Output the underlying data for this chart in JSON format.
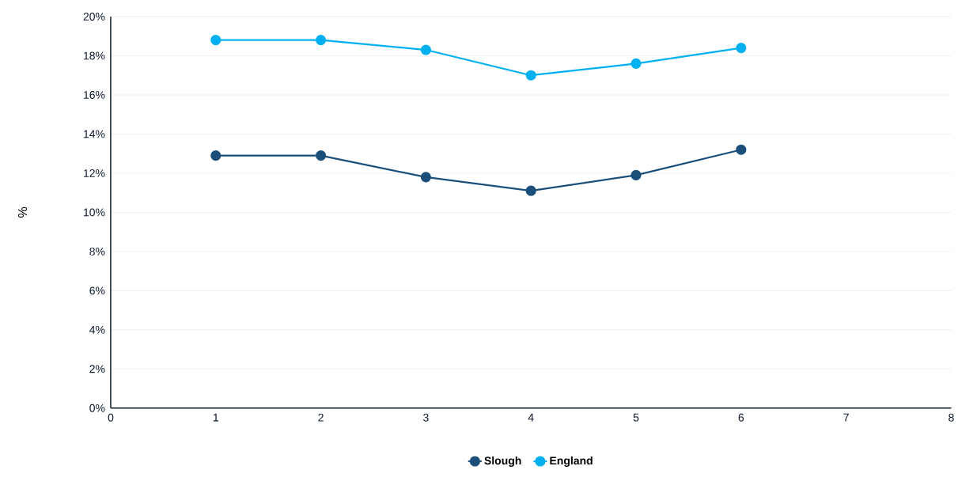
{
  "chart_data": {
    "type": "line",
    "ylabel": "%",
    "x": [
      1,
      2,
      3,
      4,
      5,
      6
    ],
    "series": [
      {
        "name": "Slough",
        "color": "#1b4f7a",
        "values": [
          12.9,
          12.9,
          11.8,
          11.1,
          11.9,
          13.2
        ]
      },
      {
        "name": "England",
        "color": "#00b0f0",
        "values": [
          18.8,
          18.8,
          18.3,
          17.0,
          17.6,
          18.4
        ]
      }
    ],
    "xlim": [
      0,
      8
    ],
    "xticks": [
      0,
      1,
      2,
      3,
      4,
      5,
      6,
      7,
      8
    ],
    "ylim": [
      0,
      20
    ],
    "yticks": [
      {
        "value": 0,
        "label": "0%"
      },
      {
        "value": 2,
        "label": "2%"
      },
      {
        "value": 4,
        "label": "4%"
      },
      {
        "value": 6,
        "label": "6%"
      },
      {
        "value": 8,
        "label": "8%"
      },
      {
        "value": 10,
        "label": "10%"
      },
      {
        "value": 12,
        "label": "12%"
      },
      {
        "value": 14,
        "label": "14%"
      },
      {
        "value": 16,
        "label": "16%"
      },
      {
        "value": 18,
        "label": "18%"
      },
      {
        "value": 20,
        "label": "20%"
      }
    ],
    "grid": "y",
    "legend": "bottom",
    "marker": "circle",
    "line_style": "solid"
  }
}
